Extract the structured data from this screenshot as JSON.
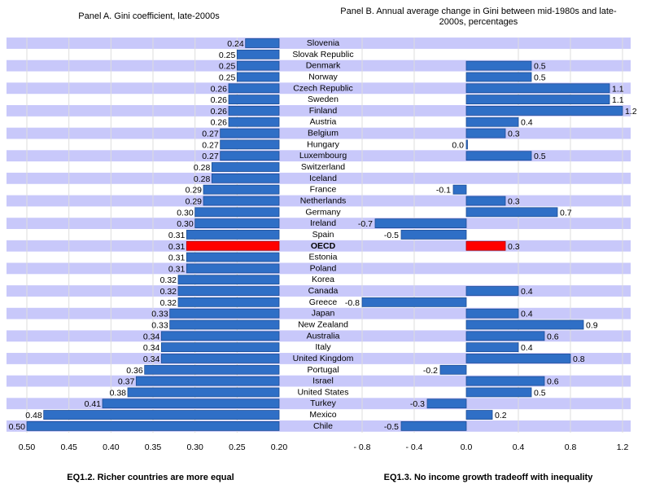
{
  "chart_data": [
    {
      "type": "bar",
      "orientation": "horizontal",
      "title": "Panel A. Gini coefficient, late-2000s",
      "caption": "EQ1.2.  Richer countries are more equal",
      "xlim": [
        0.5,
        0.2
      ],
      "x_ticks": [
        "0.50",
        "0.45",
        "0.40",
        "0.35",
        "0.30",
        "0.25",
        "0.20"
      ],
      "reversed_axis": true,
      "grid": true,
      "categories": [
        "Slovenia",
        "Slovak Republic",
        "Denmark",
        "Norway",
        "Czech Republic",
        "Sweden",
        "Finland",
        "Austria",
        "Belgium",
        "Hungary",
        "Luxembourg",
        "Switzerland",
        "Iceland",
        "France",
        "Netherlands",
        "Germany",
        "Ireland",
        "Spain",
        "OECD",
        "Estonia",
        "Poland",
        "Korea",
        "Canada",
        "Greece",
        "Japan",
        "New Zealand",
        "Australia",
        "Italy",
        "United Kingdom",
        "Portugal",
        "Israel",
        "United States",
        "Turkey",
        "Mexico",
        "Chile"
      ],
      "values": [
        0.24,
        0.25,
        0.25,
        0.25,
        0.26,
        0.26,
        0.26,
        0.26,
        0.27,
        0.27,
        0.27,
        0.28,
        0.28,
        0.29,
        0.29,
        0.3,
        0.3,
        0.31,
        0.31,
        0.31,
        0.31,
        0.32,
        0.32,
        0.32,
        0.33,
        0.33,
        0.34,
        0.34,
        0.34,
        0.36,
        0.37,
        0.38,
        0.41,
        0.48,
        0.5
      ],
      "labels": [
        "0.24",
        "0.25",
        "0.25",
        "0.25",
        "0.26",
        "0.26",
        "0.26",
        "0.26",
        "0.27",
        "0.27",
        "0.27",
        "0.28",
        "0.28",
        "0.29",
        "0.29",
        "0.30",
        "0.30",
        "0.31",
        "0.31",
        "0.31",
        "0.31",
        "0.32",
        "0.32",
        "0.32",
        "0.33",
        "0.33",
        "0.34",
        "0.34",
        "0.34",
        "0.36",
        "0.37",
        "0.38",
        "0.41",
        "0.48",
        "0.50"
      ]
    },
    {
      "type": "bar",
      "orientation": "horizontal",
      "title": "Panel B. Annual average change in Gini between mid-1980s and late-2000s, percentages",
      "caption": "EQ1.3.  No income growth tradeoff with inequality",
      "xlim": [
        -0.8,
        1.2
      ],
      "x_ticks": [
        "- 0.8",
        "- 0.4",
        "0.0",
        "0.4",
        "0.8",
        "1.2"
      ],
      "grid": true,
      "values": [
        null,
        null,
        0.5,
        0.5,
        1.1,
        1.1,
        1.2,
        0.4,
        0.3,
        0.0,
        0.5,
        null,
        null,
        -0.1,
        0.3,
        0.7,
        -0.7,
        -0.5,
        0.3,
        null,
        null,
        null,
        0.4,
        -0.8,
        0.4,
        0.9,
        0.6,
        0.4,
        0.8,
        -0.2,
        0.6,
        0.5,
        -0.3,
        0.2,
        -0.5
      ],
      "labels": [
        null,
        null,
        "0.5",
        "0.5",
        "1.1",
        "1.1",
        "1.2",
        "0.4",
        "0.3",
        "0.0",
        "0.5",
        null,
        null,
        "-0.1",
        "0.3",
        "0.7",
        "-0.7",
        "-0.5",
        "0.3",
        null,
        null,
        null,
        "0.4",
        "-0.8",
        "0.4",
        "0.9",
        "0.6",
        "0.4",
        "0.8",
        "-0.2",
        "0.6",
        "0.5",
        "-0.3",
        "0.2",
        "-0.5"
      ]
    }
  ],
  "highlight_category": "OECD",
  "colors": {
    "bar": "#2f6fc6",
    "bar_border": "#1d4d96",
    "highlight": "#ff0000",
    "band": "#c8c8fa",
    "grid": "#dddddd"
  }
}
